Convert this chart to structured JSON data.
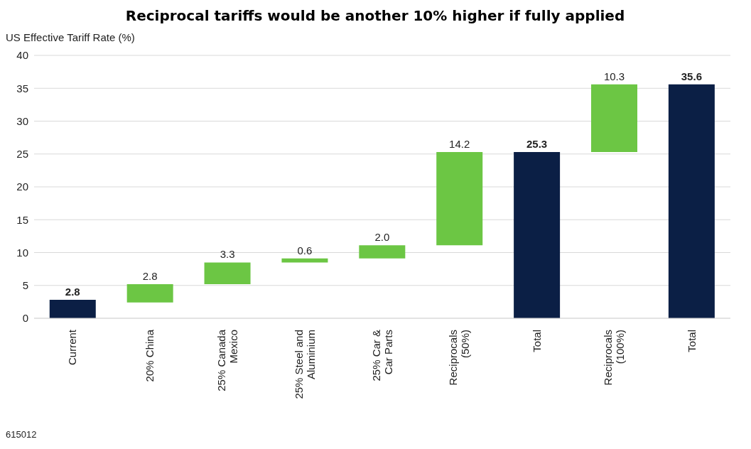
{
  "chart_data": {
    "type": "bar",
    "title": "Reciprocal tariffs would be another 10% higher if fully applied",
    "ylabel": "US Effective Tariff Rate (%)",
    "categories": [
      "Current",
      "20% China",
      "25% Canada\nMexico",
      "25% Steel and\nAluminium",
      "25% Car &\nCar Parts",
      "Reciprocals\n(50%)",
      "Total",
      "Reciprocals\n(100%)",
      "Total"
    ],
    "values": [
      2.8,
      2.8,
      3.3,
      0.6,
      2.0,
      14.2,
      25.3,
      10.3,
      35.6
    ],
    "base": [
      0,
      2.4,
      5.2,
      8.5,
      9.1,
      11.1,
      0,
      25.3,
      0
    ],
    "colors": [
      "#0b1f45",
      "#6cc644",
      "#6cc644",
      "#6cc644",
      "#6cc644",
      "#6cc644",
      "#0b1f45",
      "#6cc644",
      "#0b1f45"
    ],
    "ylim": [
      0,
      40
    ],
    "yticks": [
      0,
      5,
      10,
      15,
      20,
      25,
      30,
      35,
      40
    ],
    "grid": "y",
    "value_labels": [
      "2.8",
      "2.8",
      "3.3",
      "0.6",
      "2.0",
      "14.2",
      "25.3",
      "10.3",
      "35.6"
    ],
    "annotations": [
      "615012"
    ]
  }
}
